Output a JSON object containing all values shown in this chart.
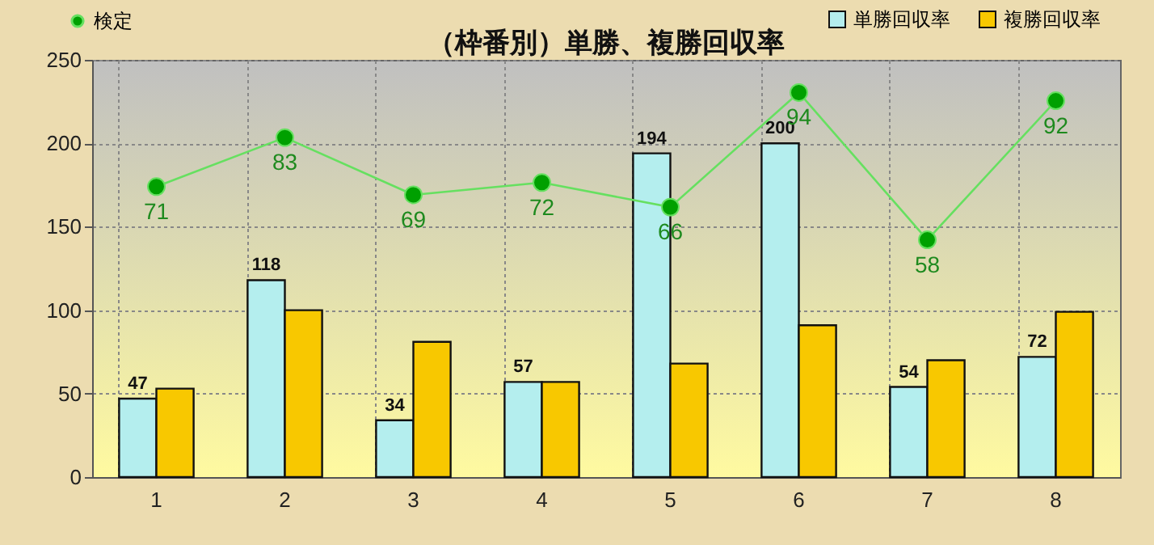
{
  "chart_data": {
    "type": "bar",
    "title": "（枠番別）単勝、複勝回収率",
    "categories": [
      "1",
      "2",
      "3",
      "4",
      "5",
      "6",
      "7",
      "8"
    ],
    "series": [
      {
        "name": "単勝回収率",
        "color": "#b4eeee",
        "values": [
          47,
          118,
          34,
          57,
          194,
          200,
          54,
          72
        ],
        "value_labels": [
          "47",
          "118",
          "34",
          "57",
          "194",
          "200",
          "54",
          "72"
        ]
      },
      {
        "name": "複勝回収率",
        "color": "#f8c800",
        "values": [
          53,
          100,
          81,
          57,
          68,
          91,
          70,
          99
        ]
      },
      {
        "name": "検定",
        "type": "line",
        "axis": "y2",
        "color": "#66e060",
        "marker": "circle",
        "values": [
          71,
          83,
          69,
          72,
          66,
          94,
          58,
          92
        ],
        "value_labels": [
          "71",
          "83",
          "69",
          "72",
          "66",
          "94",
          "58",
          "92"
        ]
      }
    ],
    "ylim": [
      0,
      250
    ],
    "yticks": [
      0,
      50,
      100,
      150,
      200,
      250
    ],
    "y2lim": [
      0,
      102
    ],
    "tick_labels": "xy",
    "grid": true,
    "legend": "top"
  }
}
